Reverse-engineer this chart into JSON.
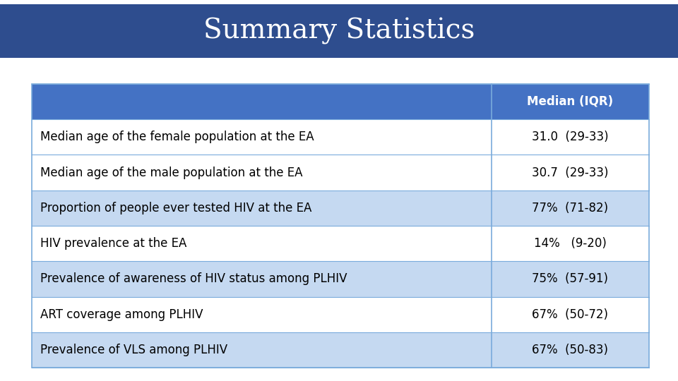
{
  "title": "Summary Statistics",
  "title_bg_color": "#2E4D8E",
  "title_text_color": "#FFFFFF",
  "header_bg_color": "#4472C4",
  "header_text_color": "#FFFFFF",
  "header_label": "Median (IQR)",
  "row_bg_even": "#FFFFFF",
  "row_bg_odd": "#C5D9F1",
  "row_text_color": "#000000",
  "table_border_color": "#7AABDC",
  "rows": [
    {
      "label": "Median age of the female population at the EA",
      "value": "31.0  (29-33)"
    },
    {
      "label": "Median age of the male population at the EA",
      "value": "30.7  (29-33)"
    },
    {
      "label": "Proportion of people ever tested HIV at the EA",
      "value": "77%  (71-82)"
    },
    {
      "label": "HIV prevalence at the EA",
      "value": "14%   (9-20)"
    },
    {
      "label": "Prevalence of awareness of HIV status among PLHIV",
      "value": "75%  (57-91)"
    },
    {
      "label": "ART coverage among PLHIV",
      "value": "67%  (50-72)"
    },
    {
      "label": "Prevalence of VLS among PLHIV",
      "value": "67%  (50-83)"
    }
  ],
  "fig_bg_color": "#FFFFFF"
}
